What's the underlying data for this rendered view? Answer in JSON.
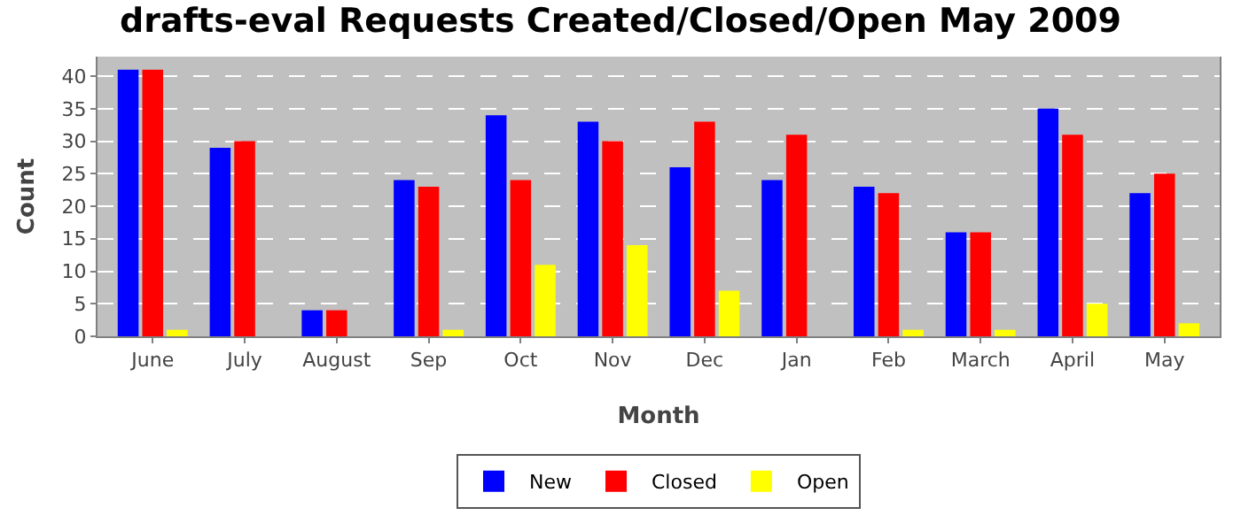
{
  "chart_data": {
    "type": "bar",
    "title": "drafts-eval Requests Created/Closed/Open May 2009",
    "xlabel": "Month",
    "ylabel": "Count",
    "categories": [
      "June",
      "July",
      "August",
      "Sep",
      "Oct",
      "Nov",
      "Dec",
      "Jan",
      "Feb",
      "March",
      "April",
      "May"
    ],
    "series": [
      {
        "name": "New",
        "color": "#0000ff",
        "values": [
          41,
          29,
          4,
          24,
          34,
          33,
          26,
          24,
          23,
          16,
          35,
          22
        ]
      },
      {
        "name": "Closed",
        "color": "#ff0000",
        "values": [
          41,
          30,
          4,
          23,
          24,
          30,
          33,
          31,
          22,
          16,
          31,
          25
        ]
      },
      {
        "name": "Open",
        "color": "#ffff00",
        "values": [
          1,
          0,
          0,
          1,
          11,
          14,
          7,
          0,
          1,
          1,
          5,
          2
        ]
      }
    ],
    "ylim": [
      0,
      43
    ],
    "yticks": [
      0,
      5,
      10,
      15,
      20,
      25,
      30,
      35,
      40
    ],
    "grid": "y",
    "legend": "bottom"
  }
}
